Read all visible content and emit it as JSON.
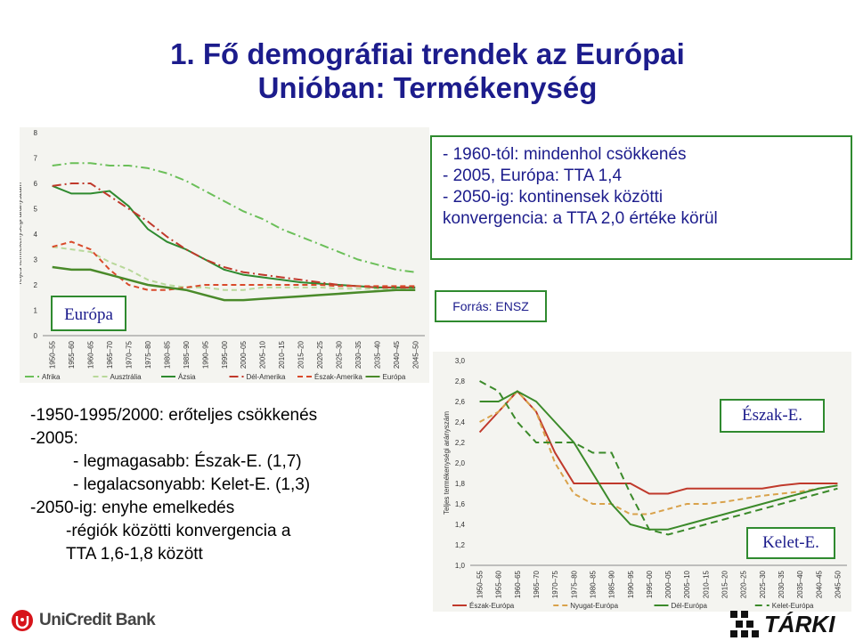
{
  "title": {
    "line1": "1. Fő demográfiai trendek az Európai",
    "line2": "Unióban: Termékenység"
  },
  "top_box": {
    "lines": [
      "- 1960-tól: mindenhol csökkenés",
      "- 2005, Európa: TTA 1,4",
      "- 2050-ig: kontinensek közötti",
      "konvergencia: a TTA 2,0 értéke körül"
    ]
  },
  "bottom_box": {
    "lines": [
      "-1950-1995/2000: erőteljes csökkenés",
      "-2005:",
      "- legmagasabb: Észak-E. (1,7)",
      "- legalacsonyabb: Kelet-E. (1,3)",
      "-2050-ig: enyhe emelkedés",
      "-régiók közötti konvergencia a",
      "TTA 1,6-1,8 között"
    ]
  },
  "labels": {
    "europa": "Európa",
    "forras": "Forrás: ENSZ",
    "eszak": "Észak-E.",
    "kelet": "Kelet-E."
  },
  "logos": {
    "unicredit": "UniCredit Bank",
    "tarki": "TÁRKI"
  },
  "colors": {
    "title": "#1c1c8c",
    "frame": "#2f8a2f",
    "africa": "#6bbf59",
    "australia": "#b8d89a",
    "asia": "#2f8a2f",
    "latam": "#c0392b",
    "northam": "#d94a2b",
    "europe": "#4a8a2a"
  },
  "chart_data": [
    {
      "type": "line",
      "ylabel": "Teljes termékenységi arányszám",
      "ylim": [
        0,
        8
      ],
      "yticks": [
        "0",
        "1",
        "2",
        "3",
        "4",
        "5",
        "6",
        "7",
        "8"
      ],
      "categories": [
        "1950–55",
        "1955–60",
        "1960–65",
        "1965–70",
        "1970–75",
        "1975–80",
        "1980–85",
        "1985–90",
        "1990–95",
        "1995–00",
        "2000–05",
        "2005–10",
        "2010–15",
        "2015–20",
        "2020–25",
        "2025–30",
        "2030–35",
        "2035–40",
        "2040–45",
        "2045–50"
      ],
      "series": [
        {
          "name": "Afrika",
          "values": [
            6.7,
            6.8,
            6.8,
            6.7,
            6.7,
            6.6,
            6.4,
            6.1,
            5.7,
            5.3,
            4.9,
            4.6,
            4.2,
            3.9,
            3.6,
            3.3,
            3.0,
            2.8,
            2.6,
            2.5
          ]
        },
        {
          "name": "Ausztrália",
          "values": [
            3.5,
            3.4,
            3.3,
            2.9,
            2.6,
            2.2,
            2.0,
            1.9,
            1.9,
            1.8,
            1.8,
            1.9,
            1.9,
            1.9,
            1.9,
            1.85,
            1.85,
            1.85,
            1.85,
            1.85
          ]
        },
        {
          "name": "Ázsia",
          "values": [
            5.9,
            5.6,
            5.6,
            5.7,
            5.1,
            4.2,
            3.7,
            3.4,
            3.0,
            2.6,
            2.4,
            2.3,
            2.2,
            2.1,
            2.05,
            2.0,
            1.95,
            1.9,
            1.9,
            1.9
          ]
        },
        {
          "name": "Dél-Amerika",
          "values": [
            5.9,
            6.0,
            6.0,
            5.5,
            5.0,
            4.5,
            3.9,
            3.4,
            3.0,
            2.7,
            2.5,
            2.4,
            2.3,
            2.2,
            2.1,
            2.0,
            1.95,
            1.9,
            1.9,
            1.9
          ]
        },
        {
          "name": "Észak-Amerika",
          "values": [
            3.5,
            3.7,
            3.4,
            2.6,
            2.0,
            1.8,
            1.8,
            1.9,
            2.0,
            2.0,
            2.0,
            2.0,
            2.0,
            2.0,
            2.0,
            1.95,
            1.95,
            1.95,
            1.95,
            1.95
          ]
        },
        {
          "name": "Európa",
          "values": [
            2.7,
            2.6,
            2.6,
            2.4,
            2.2,
            2.0,
            1.9,
            1.8,
            1.6,
            1.4,
            1.4,
            1.45,
            1.5,
            1.55,
            1.6,
            1.65,
            1.7,
            1.75,
            1.8,
            1.8
          ]
        }
      ]
    },
    {
      "type": "line",
      "ylabel": "Teljes termékenységi arányszám",
      "ylim": [
        1.0,
        3.0
      ],
      "yticks": [
        "1,0",
        "1,2",
        "1,4",
        "1,6",
        "1,8",
        "2,0",
        "2,2",
        "2,4",
        "2,6",
        "2,8",
        "3,0"
      ],
      "categories": [
        "1950–55",
        "1955–60",
        "1960–65",
        "1965–70",
        "1970–75",
        "1975–80",
        "1980–85",
        "1985–90",
        "1990–95",
        "1995–00",
        "2000–05",
        "2005–10",
        "2010–15",
        "2015–20",
        "2020–25",
        "2025–30",
        "2030–35",
        "2035–40",
        "2040–45",
        "2045–50"
      ],
      "series": [
        {
          "name": "Észak-Európa",
          "values": [
            2.3,
            2.5,
            2.7,
            2.5,
            2.1,
            1.8,
            1.8,
            1.8,
            1.8,
            1.7,
            1.7,
            1.75,
            1.75,
            1.75,
            1.75,
            1.75,
            1.78,
            1.8,
            1.8,
            1.8
          ]
        },
        {
          "name": "Nyugat-Európa",
          "values": [
            2.4,
            2.5,
            2.7,
            2.5,
            2.0,
            1.7,
            1.6,
            1.6,
            1.5,
            1.5,
            1.55,
            1.6,
            1.6,
            1.62,
            1.65,
            1.68,
            1.7,
            1.72,
            1.75,
            1.78
          ]
        },
        {
          "name": "Dél-Európa",
          "values": [
            2.6,
            2.6,
            2.7,
            2.6,
            2.4,
            2.2,
            1.9,
            1.6,
            1.4,
            1.35,
            1.35,
            1.4,
            1.45,
            1.5,
            1.55,
            1.6,
            1.65,
            1.7,
            1.75,
            1.78
          ]
        },
        {
          "name": "Kelet-Európa",
          "values": [
            2.8,
            2.7,
            2.4,
            2.2,
            2.2,
            2.2,
            2.1,
            2.1,
            1.7,
            1.35,
            1.3,
            1.35,
            1.4,
            1.45,
            1.5,
            1.55,
            1.6,
            1.65,
            1.7,
            1.75
          ]
        }
      ]
    }
  ]
}
